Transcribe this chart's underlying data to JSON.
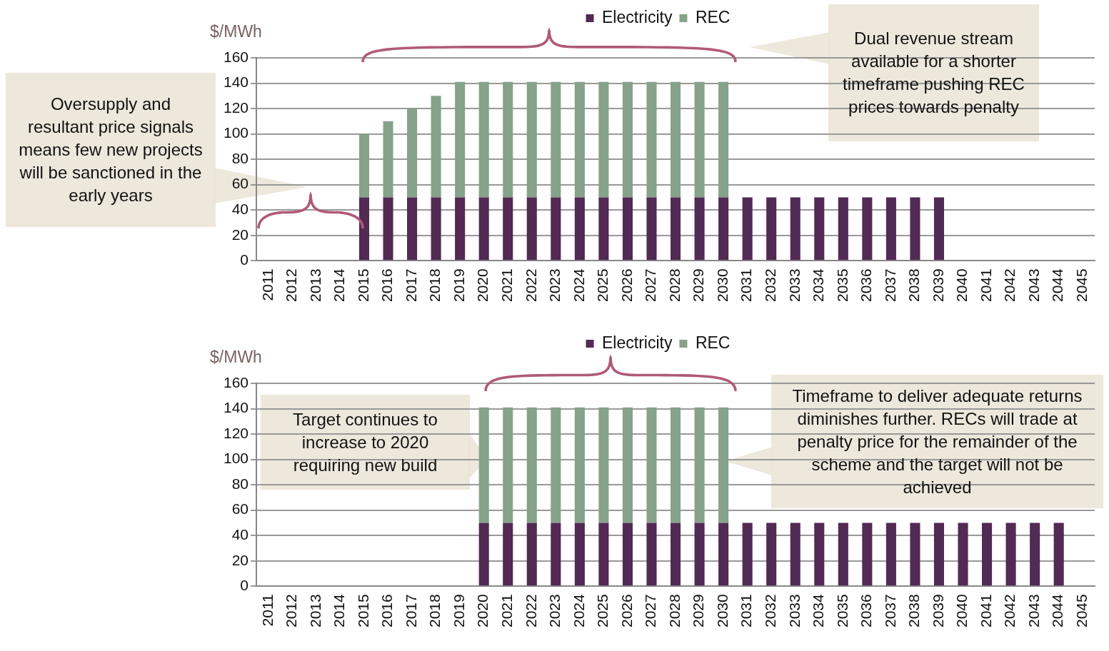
{
  "chart_data": [
    {
      "type": "bar",
      "stacked": true,
      "ylabel": "$/MWh",
      "legend": "top",
      "grid": "y",
      "categories": [
        "2011",
        "2012",
        "2013",
        "2014",
        "2015",
        "2016",
        "2017",
        "2018",
        "2019",
        "2020",
        "2021",
        "2022",
        "2023",
        "2024",
        "2025",
        "2026",
        "2027",
        "2028",
        "2029",
        "2030",
        "2031",
        "2032",
        "2033",
        "2034",
        "2035",
        "2036",
        "2037",
        "2038",
        "2039",
        "2040",
        "2041",
        "2042",
        "2043",
        "2044",
        "2045"
      ],
      "ylim": [
        0,
        160
      ],
      "yticks": [
        0,
        20,
        40,
        60,
        80,
        100,
        120,
        140,
        160
      ],
      "series": [
        {
          "name": "Electricity",
          "color": "#522a54",
          "values": [
            null,
            null,
            null,
            null,
            50,
            50,
            50,
            50,
            50,
            50,
            50,
            50,
            50,
            50,
            50,
            50,
            50,
            50,
            50,
            50,
            50,
            50,
            50,
            50,
            50,
            50,
            50,
            50,
            50,
            null,
            null,
            null,
            null,
            null,
            null
          ]
        },
        {
          "name": "REC",
          "color": "#86a28a",
          "values": [
            null,
            null,
            null,
            null,
            50,
            60,
            70,
            80,
            91,
            91,
            91,
            91,
            91,
            91,
            91,
            91,
            91,
            91,
            91,
            91,
            null,
            null,
            null,
            null,
            null,
            null,
            null,
            null,
            null,
            null,
            null,
            null,
            null,
            null,
            null
          ]
        }
      ],
      "annotations": [
        "Oversupply and resultant price signals means few new projects will be sanctioned in the early years",
        "Dual revenue stream available for a shorter timeframe pushing REC prices towards penalty"
      ]
    },
    {
      "type": "bar",
      "stacked": true,
      "ylabel": "$/MWh",
      "legend": "top",
      "grid": "y",
      "categories": [
        "2011",
        "2012",
        "2013",
        "2014",
        "2015",
        "2016",
        "2017",
        "2018",
        "2019",
        "2020",
        "2021",
        "2022",
        "2023",
        "2024",
        "2025",
        "2026",
        "2027",
        "2028",
        "2029",
        "2030",
        "2031",
        "2032",
        "2033",
        "2034",
        "2035",
        "2036",
        "2037",
        "2038",
        "2039",
        "2040",
        "2041",
        "2042",
        "2043",
        "2044",
        "2045"
      ],
      "ylim": [
        0,
        160
      ],
      "yticks": [
        0,
        20,
        40,
        60,
        80,
        100,
        120,
        140,
        160
      ],
      "series": [
        {
          "name": "Electricity",
          "color": "#522a54",
          "values": [
            null,
            null,
            null,
            null,
            null,
            null,
            null,
            null,
            null,
            50,
            50,
            50,
            50,
            50,
            50,
            50,
            50,
            50,
            50,
            50,
            50,
            50,
            50,
            50,
            50,
            50,
            50,
            50,
            50,
            50,
            50,
            50,
            50,
            50,
            null
          ]
        },
        {
          "name": "REC",
          "color": "#86a28a",
          "values": [
            null,
            null,
            null,
            null,
            null,
            null,
            null,
            null,
            null,
            91,
            91,
            91,
            91,
            91,
            91,
            91,
            91,
            91,
            91,
            91,
            null,
            null,
            null,
            null,
            null,
            null,
            null,
            null,
            null,
            null,
            null,
            null,
            null,
            null,
            null
          ]
        }
      ],
      "annotations": [
        "Target continues to increase to 2020 requiring new build",
        "Timeframe to deliver adequate returns diminishes further. RECs will trade at penalty price for  the remainder of the scheme and the target will not be achieved"
      ]
    }
  ]
}
